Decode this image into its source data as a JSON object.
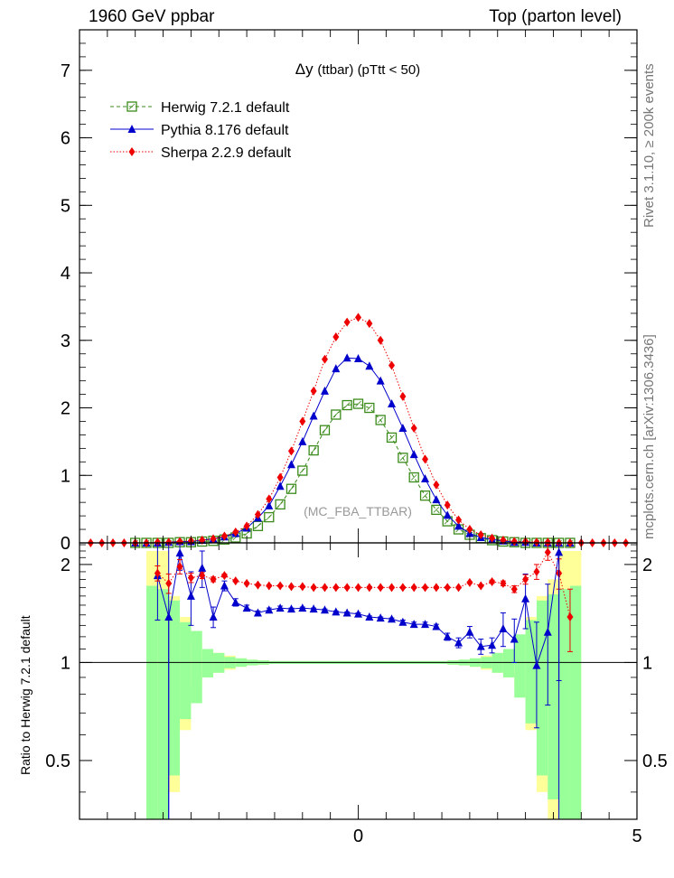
{
  "header": {
    "energy": "1960 GeV ppbar",
    "process": "Top (parton level)"
  },
  "side_labels": {
    "rivet": "Rivet 3.1.10, ≥ 200k events",
    "source": "mcplots.cern.ch [arXiv:1306.3436]"
  },
  "colors": {
    "herwig": "#3a8a1a",
    "pythia": "#0000cc",
    "sherpa": "#ee0000",
    "band_inner": "#99ff99",
    "band_outer": "#ffff99"
  },
  "chart_data": [
    {
      "type": "line",
      "title_sym": "Δy",
      "title": "(ttbar) (pTtt < 50)",
      "watermark": "(MC_FBA_TTBAR)",
      "xlim": [
        -5,
        5
      ],
      "ylim": [
        0,
        7.6
      ],
      "yticks": [
        0,
        1,
        2,
        3,
        4,
        5,
        6,
        7
      ],
      "legend_position": "top-left",
      "x": [
        -4.8,
        -4.6,
        -4.4,
        -4.2,
        -4.0,
        -3.8,
        -3.6,
        -3.4,
        -3.2,
        -3.0,
        -2.8,
        -2.6,
        -2.4,
        -2.2,
        -2.0,
        -1.8,
        -1.6,
        -1.4,
        -1.2,
        -1.0,
        -0.8,
        -0.6,
        -0.4,
        -0.2,
        0.0,
        0.2,
        0.4,
        0.6,
        0.8,
        1.0,
        1.2,
        1.4,
        1.6,
        1.8,
        2.0,
        2.2,
        2.4,
        2.6,
        2.8,
        3.0,
        3.2,
        3.4,
        3.6,
        3.8,
        4.0,
        4.2,
        4.4,
        4.6,
        4.8
      ],
      "series": [
        {
          "name": "Herwig 7.2.1 default",
          "marker": "open-square",
          "line": "dashed",
          "values": [
            null,
            null,
            null,
            null,
            0.0,
            0.0,
            0.0,
            0.0,
            0.01,
            0.01,
            0.02,
            0.03,
            0.05,
            0.08,
            0.14,
            0.25,
            0.38,
            0.57,
            0.8,
            1.07,
            1.37,
            1.67,
            1.9,
            2.04,
            2.06,
            2.0,
            1.82,
            1.56,
            1.26,
            0.97,
            0.7,
            0.49,
            0.32,
            0.2,
            0.12,
            0.07,
            0.04,
            0.02,
            0.01,
            0.0,
            0.0,
            0.0,
            0.0,
            0.0,
            null,
            null,
            null,
            null,
            null
          ]
        },
        {
          "name": "Pythia 8.176 default",
          "marker": "filled-triangle",
          "line": "solid",
          "values": [
            null,
            null,
            null,
            null,
            0.0,
            0.0,
            0.0,
            0.01,
            0.02,
            0.02,
            0.04,
            0.06,
            0.09,
            0.14,
            0.22,
            0.37,
            0.55,
            0.84,
            1.16,
            1.5,
            1.88,
            2.25,
            2.58,
            2.74,
            2.73,
            2.62,
            2.4,
            2.06,
            1.7,
            1.31,
            0.95,
            0.64,
            0.41,
            0.25,
            0.14,
            0.08,
            0.05,
            0.03,
            0.01,
            0.01,
            0.0,
            0.0,
            0.0,
            0.0,
            null,
            null,
            null,
            null,
            null
          ]
        },
        {
          "name": "Sherpa 2.2.9 default",
          "marker": "filled-diamond",
          "line": "dotted",
          "values": [
            0.0,
            0.0,
            0.0,
            0.0,
            0.0,
            0.0,
            0.01,
            0.01,
            0.02,
            0.03,
            0.04,
            0.06,
            0.1,
            0.16,
            0.25,
            0.42,
            0.65,
            0.97,
            1.36,
            1.8,
            2.25,
            2.72,
            3.05,
            3.27,
            3.34,
            3.25,
            3.0,
            2.63,
            2.17,
            1.7,
            1.24,
            0.86,
            0.56,
            0.34,
            0.2,
            0.12,
            0.07,
            0.04,
            0.02,
            0.02,
            0.01,
            0.01,
            0.0,
            0.0,
            0.0,
            0.0,
            0.0,
            0.0,
            0.0
          ]
        }
      ]
    },
    {
      "type": "line",
      "ylabel": "Ratio to Herwig 7.2.1 default",
      "xlim": [
        -5,
        5
      ],
      "ylim": [
        0.33,
        2.33
      ],
      "yticks": [
        0.5,
        1,
        2
      ],
      "xticks": [
        0,
        5
      ],
      "reference_line": 1,
      "x": [
        -3.6,
        -3.4,
        -3.2,
        -3.0,
        -2.8,
        -2.6,
        -2.4,
        -2.2,
        -2.0,
        -1.8,
        -1.6,
        -1.4,
        -1.2,
        -1.0,
        -0.8,
        -0.6,
        -0.4,
        -0.2,
        0.0,
        0.2,
        0.4,
        0.6,
        0.8,
        1.0,
        1.2,
        1.4,
        1.6,
        1.8,
        2.0,
        2.2,
        2.4,
        2.6,
        2.8,
        3.0,
        3.2,
        3.4,
        3.6,
        3.8
      ],
      "uncertainty_band": {
        "edges": [
          -3.8,
          -3.6,
          -3.4,
          -3.2,
          -3.0,
          -2.8,
          -2.6,
          -2.4,
          -2.2,
          -2.0,
          -1.8,
          -1.6,
          1.6,
          1.8,
          2.0,
          2.2,
          2.4,
          2.6,
          2.8,
          3.0,
          3.2,
          3.4,
          3.6,
          3.8,
          4.0
        ],
        "inner": [
          0.72,
          0.68,
          0.55,
          0.33,
          0.25,
          0.1,
          0.07,
          0.04,
          0.03,
          0.02,
          0.015,
          0.01,
          0.015,
          0.02,
          0.03,
          0.04,
          0.07,
          0.1,
          0.22,
          0.35,
          0.55,
          0.62,
          0.68,
          0.72
        ],
        "outer": [
          1.2,
          1.2,
          0.6,
          0.38,
          0.15,
          0.1,
          0.07,
          0.05,
          0.03,
          0.02,
          0.015,
          0.01,
          0.015,
          0.02,
          0.03,
          0.05,
          0.07,
          0.1,
          0.15,
          0.38,
          0.6,
          0.8,
          1.2,
          1.2
        ]
      },
      "series": [
        {
          "name": "Pythia 8.176 default",
          "values": [
            1.85,
            1.38,
            2.17,
            1.6,
            1.95,
            1.38,
            1.72,
            1.53,
            1.47,
            1.42,
            1.45,
            1.47,
            1.46,
            1.47,
            1.46,
            1.45,
            1.43,
            1.42,
            1.41,
            1.38,
            1.37,
            1.36,
            1.33,
            1.31,
            1.31,
            1.29,
            1.2,
            1.15,
            1.24,
            1.12,
            1.13,
            1.27,
            1.18,
            1.57,
            0.98,
            1.24,
            2.18,
            null
          ],
          "errors": [
            0.5,
            1.2,
            0.25,
            0.3,
            0.25,
            0.1,
            0.06,
            0.04,
            0.03,
            0.02,
            0.02,
            0.02,
            0.01,
            0.01,
            0.01,
            0.01,
            0.01,
            0.01,
            0.01,
            0.01,
            0.01,
            0.01,
            0.02,
            0.02,
            0.02,
            0.02,
            0.03,
            0.04,
            0.05,
            0.06,
            0.06,
            0.15,
            0.18,
            0.3,
            0.35,
            0.5,
            1.3,
            null
          ]
        },
        {
          "name": "Sherpa 2.2.9 default",
          "values": [
            1.88,
            1.75,
            1.97,
            1.82,
            1.85,
            1.8,
            1.85,
            1.78,
            1.75,
            1.73,
            1.72,
            1.72,
            1.71,
            1.71,
            1.7,
            1.7,
            1.7,
            1.7,
            1.7,
            1.7,
            1.7,
            1.7,
            1.7,
            1.7,
            1.7,
            1.7,
            1.7,
            1.7,
            1.76,
            1.72,
            1.77,
            1.75,
            1.68,
            1.8,
            1.9,
            2.18,
            1.88,
            1.38
          ],
          "errors": [
            0.1,
            0.12,
            0.1,
            0.06,
            0.04,
            0.03,
            0.02,
            0.01,
            0.01,
            0.01,
            0.01,
            0.01,
            0.01,
            0.01,
            0.01,
            0.01,
            0.01,
            0.01,
            0.01,
            0.01,
            0.01,
            0.01,
            0.01,
            0.01,
            0.01,
            0.01,
            0.01,
            0.01,
            0.01,
            0.01,
            0.02,
            0.03,
            0.04,
            0.06,
            0.1,
            0.12,
            0.2,
            0.3
          ]
        }
      ]
    }
  ]
}
